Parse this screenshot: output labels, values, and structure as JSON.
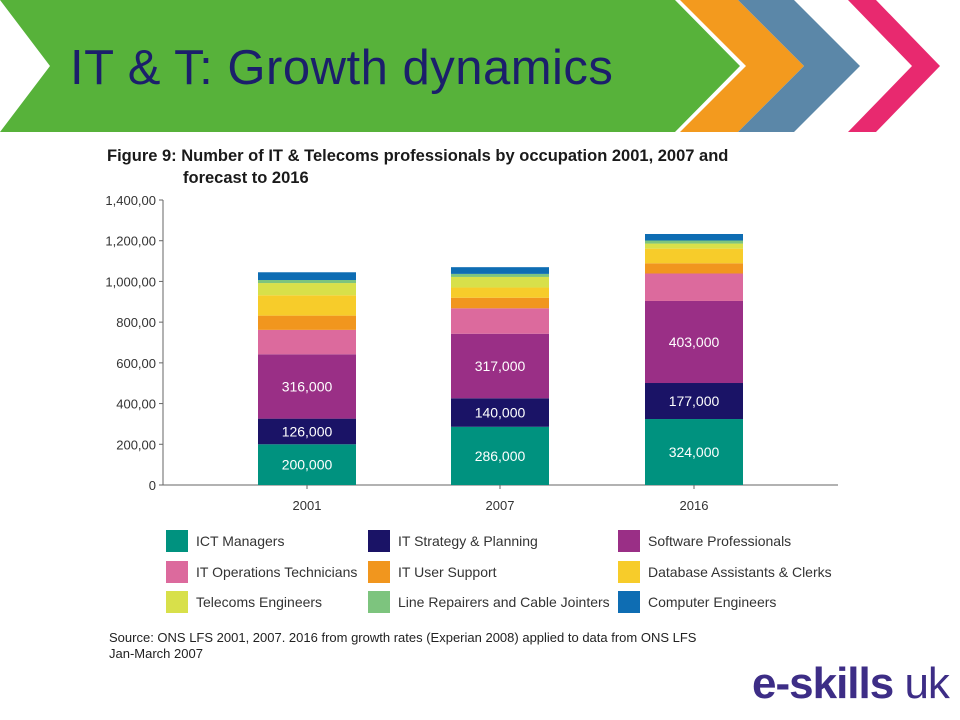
{
  "slide": {
    "title": "IT & T: Growth dynamics",
    "banner_colors": {
      "green": "#57b23a",
      "orange": "#f39a1e",
      "slate": "#5b87a8",
      "pink": "#e8296f"
    }
  },
  "figure": {
    "title_line1": "Figure 9: Number of IT & Telecoms professionals by occupation 2001, 2007 and",
    "title_line2": "forecast to 2016",
    "source_line1": "Source: ONS LFS 2001, 2007.  2016 from growth rates (Experian 2008) applied to data from ONS LFS",
    "source_line2": "Jan-March 2007"
  },
  "chart_data": {
    "type": "bar",
    "stacked": true,
    "categories": [
      "2001",
      "2007",
      "2016"
    ],
    "ylim": [
      0,
      1400000
    ],
    "yticks": [
      0,
      200000,
      400000,
      600000,
      800000,
      1000000,
      1200000,
      1400000
    ],
    "ytick_labels": [
      "0",
      "200,00",
      "400,00",
      "600,00",
      "800,00",
      "1,000,00",
      "1,200,00",
      "1,400,00"
    ],
    "grid": false,
    "legend_position": "bottom",
    "series": [
      {
        "name": "ICT Managers",
        "color": "#00927f",
        "values": [
          200000,
          286000,
          324000
        ],
        "labels": [
          "200,000",
          "286,000",
          "324,000"
        ]
      },
      {
        "name": "IT Strategy & Planning",
        "color": "#1a1366",
        "values": [
          126000,
          140000,
          177000
        ],
        "labels": [
          "126,000",
          "140,000",
          "177,000"
        ]
      },
      {
        "name": "Software Professionals",
        "color": "#9a2f86",
        "values": [
          316000,
          317000,
          403000
        ],
        "labels": [
          "316,000",
          "317,000",
          "403,000"
        ]
      },
      {
        "name": "IT Operations Technicians",
        "color": "#dc6a9d",
        "values": [
          120000,
          125000,
          135000
        ]
      },
      {
        "name": "IT User Support",
        "color": "#f1961e",
        "values": [
          70000,
          52000,
          50000
        ]
      },
      {
        "name": "Database Assistants & Clerks",
        "color": "#f7cc2a",
        "values": [
          100000,
          50000,
          72000
        ]
      },
      {
        "name": "Telecoms Engineers",
        "color": "#d8e04a",
        "values": [
          60000,
          52000,
          25000
        ]
      },
      {
        "name": "Line Repairers and Cable Jointers",
        "color": "#7dc47e",
        "values": [
          15000,
          15000,
          15000
        ]
      },
      {
        "name": "Computer Engineers",
        "color": "#0e6db3",
        "values": [
          38000,
          33000,
          32000
        ]
      }
    ]
  },
  "logo": {
    "part1": "e-skills",
    "part2": " uk"
  }
}
